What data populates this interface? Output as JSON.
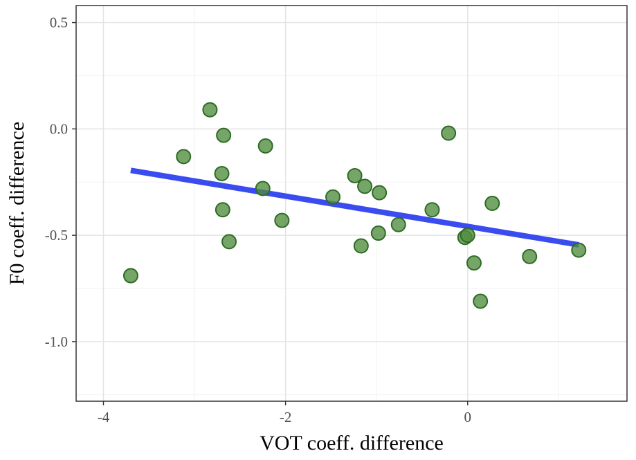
{
  "chart_data": {
    "type": "scatter",
    "xlabel": "VOT coeff. difference",
    "ylabel": "F0 coeff. difference",
    "xlim": [
      -4.3,
      1.75
    ],
    "ylim": [
      -1.28,
      0.58
    ],
    "x_ticks": [
      -4,
      -2,
      0
    ],
    "x_tick_labels": [
      "-4",
      "-2",
      "0"
    ],
    "y_ticks": [
      -1.0,
      -0.5,
      0.0,
      0.5
    ],
    "y_tick_labels": [
      "-1.0",
      "-0.5",
      "0.0",
      "0.5"
    ],
    "x_minor": [
      -5,
      -3,
      -1,
      1
    ],
    "y_minor": [
      -1.25,
      -0.75,
      -0.25,
      0.25
    ],
    "grid": true,
    "points": [
      {
        "x": -3.7,
        "y": -0.69
      },
      {
        "x": -3.12,
        "y": -0.13
      },
      {
        "x": -2.83,
        "y": 0.09
      },
      {
        "x": -2.68,
        "y": -0.03
      },
      {
        "x": -2.7,
        "y": -0.21
      },
      {
        "x": -2.69,
        "y": -0.38
      },
      {
        "x": -2.62,
        "y": -0.53
      },
      {
        "x": -2.22,
        "y": -0.08
      },
      {
        "x": -2.25,
        "y": -0.28
      },
      {
        "x": -2.04,
        "y": -0.43
      },
      {
        "x": -1.48,
        "y": -0.32
      },
      {
        "x": -1.24,
        "y": -0.22
      },
      {
        "x": -1.13,
        "y": -0.27
      },
      {
        "x": -1.17,
        "y": -0.55
      },
      {
        "x": -0.97,
        "y": -0.3
      },
      {
        "x": -0.98,
        "y": -0.49
      },
      {
        "x": -0.76,
        "y": -0.45
      },
      {
        "x": -0.39,
        "y": -0.38
      },
      {
        "x": -0.21,
        "y": -0.02
      },
      {
        "x": -0.03,
        "y": -0.51
      },
      {
        "x": 0.0,
        "y": -0.5
      },
      {
        "x": 0.07,
        "y": -0.63
      },
      {
        "x": 0.14,
        "y": -0.81
      },
      {
        "x": 0.27,
        "y": -0.35
      },
      {
        "x": 0.68,
        "y": -0.6
      },
      {
        "x": 1.22,
        "y": -0.57
      }
    ],
    "fit_line": {
      "x": [
        -3.7,
        1.22
      ],
      "y": [
        -0.195,
        -0.545
      ]
    },
    "colors": {
      "point_fill": "#4f8c3e",
      "point_stroke": "#2e6b25",
      "fit_line": "#3a4bf0",
      "grid_major": "#e4e4e4",
      "grid_minor": "#f1f1f1",
      "panel_border": "#333333",
      "tick_label": "#4d4d4d"
    }
  }
}
